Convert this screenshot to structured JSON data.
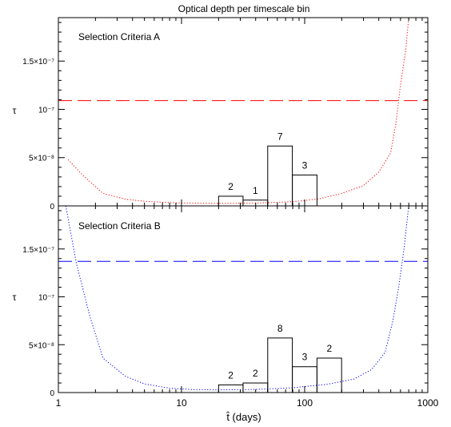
{
  "figure": {
    "title": "Optical depth per timescale bin",
    "xlabel": "t̂ (days)"
  },
  "chart_data": [
    {
      "type": "bar",
      "panel": "top",
      "title": "Optical depth per timescale bin",
      "annotation": "Selection Criteria A",
      "ylabel": "τ",
      "xscale": "log",
      "xlim": [
        1,
        1000
      ],
      "ylim": [
        0,
        1.95e-07
      ],
      "xticks": [
        {
          "value": 1,
          "label": "1"
        },
        {
          "value": 10,
          "label": "10"
        },
        {
          "value": 100,
          "label": "100"
        },
        {
          "value": 1000,
          "label": "1000"
        }
      ],
      "yticks": [
        {
          "value": 0,
          "label": "0"
        },
        {
          "value": 5e-08,
          "label": "5×10⁻⁸"
        },
        {
          "value": 1e-07,
          "label": "10⁻⁷"
        },
        {
          "value": 1.5e-07,
          "label": "1.5×10⁻⁷"
        }
      ],
      "bins": [
        {
          "x0": 20,
          "x1": 31.6,
          "tau": 1e-08,
          "count": "2"
        },
        {
          "x0": 31.6,
          "x1": 50.1,
          "tau": 6e-09,
          "count": "1"
        },
        {
          "x0": 50.1,
          "x1": 79.4,
          "tau": 6.2e-08,
          "count": "7"
        },
        {
          "x0": 79.4,
          "x1": 125.9,
          "tau": 3.2e-08,
          "count": "3"
        }
      ],
      "threshold": {
        "y": 1.09e-07,
        "color": "#ff0000",
        "style": "dashed"
      },
      "curve": {
        "color": "#ff0000",
        "style": "dotted",
        "points": [
          [
            1.2,
            4.8e-08
          ],
          [
            1.6,
            3.1e-08
          ],
          [
            2.3,
            1.3e-08
          ],
          [
            3.5,
            7e-09
          ],
          [
            5,
            4.8e-09
          ],
          [
            8,
            3.3e-09
          ],
          [
            12,
            2.8e-09
          ],
          [
            20,
            2.6e-09
          ],
          [
            40,
            2.9e-09
          ],
          [
            80,
            4.3e-09
          ],
          [
            130,
            7.2e-09
          ],
          [
            200,
            1.3e-08
          ],
          [
            300,
            2.1e-08
          ],
          [
            400,
            3.5e-08
          ],
          [
            500,
            5.5e-08
          ],
          [
            550,
            8.5e-08
          ],
          [
            600,
            1.25e-07
          ],
          [
            660,
            1.6e-07
          ],
          [
            700,
            1.95e-07
          ]
        ]
      }
    },
    {
      "type": "bar",
      "panel": "bottom",
      "annotation": "Selection Criteria B",
      "ylabel": "τ",
      "xscale": "log",
      "xlim": [
        1,
        1000
      ],
      "ylim": [
        0,
        1.95e-07
      ],
      "xticks": [
        {
          "value": 1,
          "label": "1"
        },
        {
          "value": 10,
          "label": "10"
        },
        {
          "value": 100,
          "label": "100"
        },
        {
          "value": 1000,
          "label": "1000"
        }
      ],
      "yticks": [
        {
          "value": 0,
          "label": "0"
        },
        {
          "value": 5e-08,
          "label": "5×10⁻⁸"
        },
        {
          "value": 1e-07,
          "label": "10⁻⁷"
        },
        {
          "value": 1.5e-07,
          "label": "1.5×10⁻⁷"
        }
      ],
      "bins": [
        {
          "x0": 20,
          "x1": 31.6,
          "tau": 8e-09,
          "count": "2"
        },
        {
          "x0": 31.6,
          "x1": 50.1,
          "tau": 1e-08,
          "count": "2"
        },
        {
          "x0": 50.1,
          "x1": 79.4,
          "tau": 5.7e-08,
          "count": "8"
        },
        {
          "x0": 79.4,
          "x1": 125.9,
          "tau": 2.7e-08,
          "count": "3"
        },
        {
          "x0": 125.9,
          "x1": 199.5,
          "tau": 3.6e-08,
          "count": "2"
        }
      ],
      "threshold": {
        "y": 1.37e-07,
        "color": "#0000ff",
        "style": "dashed"
      },
      "curve": {
        "color": "#0000ff",
        "style": "dotted",
        "points": [
          [
            1.15,
            1.95e-07
          ],
          [
            1.4,
            1.35e-07
          ],
          [
            1.8,
            8e-08
          ],
          [
            2.3,
            3.6e-08
          ],
          [
            3.5,
            1.7e-08
          ],
          [
            5,
            9e-09
          ],
          [
            8,
            4.5e-09
          ],
          [
            12,
            3.2e-09
          ],
          [
            20,
            2.8e-09
          ],
          [
            40,
            3.3e-09
          ],
          [
            80,
            5e-09
          ],
          [
            150,
            8.5e-09
          ],
          [
            250,
            1.4e-08
          ],
          [
            350,
            2.4e-08
          ],
          [
            450,
            4.2e-08
          ],
          [
            520,
            7.5e-08
          ],
          [
            580,
            1.1e-07
          ],
          [
            640,
            1.5e-07
          ],
          [
            700,
            1.95e-07
          ]
        ]
      }
    }
  ]
}
